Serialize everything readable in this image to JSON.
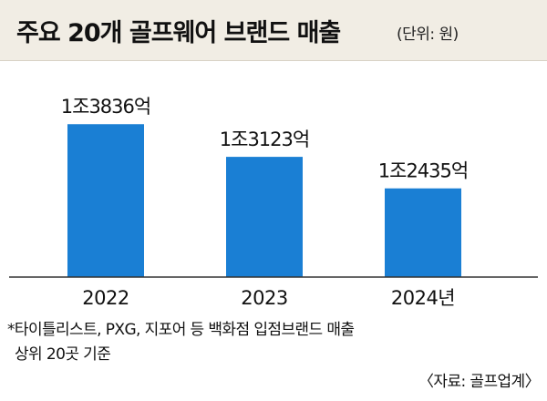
{
  "header": {
    "title": "주요 20개 골프웨어 브랜드 매출",
    "unit": "(단위: 원)"
  },
  "colors": {
    "bar": "#1a7fd4",
    "header_bg": "#f1ede4",
    "axis": "#333333"
  },
  "chart_data": {
    "type": "bar",
    "title": "주요 20개 골프웨어 브랜드 매출",
    "categories": [
      "2022",
      "2023",
      "2024년"
    ],
    "values": [
      13836,
      13123,
      12435
    ],
    "value_labels": [
      "1조3836억",
      "1조3123억",
      "1조2435억"
    ],
    "units": "억원",
    "ylim": [
      10500,
      14000
    ],
    "xlabel": "",
    "ylabel": "",
    "grid": false,
    "legend": "none"
  },
  "footnote": {
    "line1": "*타이틀리스트, PXG, 지포어 등 백화점 입점브랜드 매출",
    "line2": "상위 20곳 기준"
  },
  "source": "〈자료: 골프업계〉"
}
